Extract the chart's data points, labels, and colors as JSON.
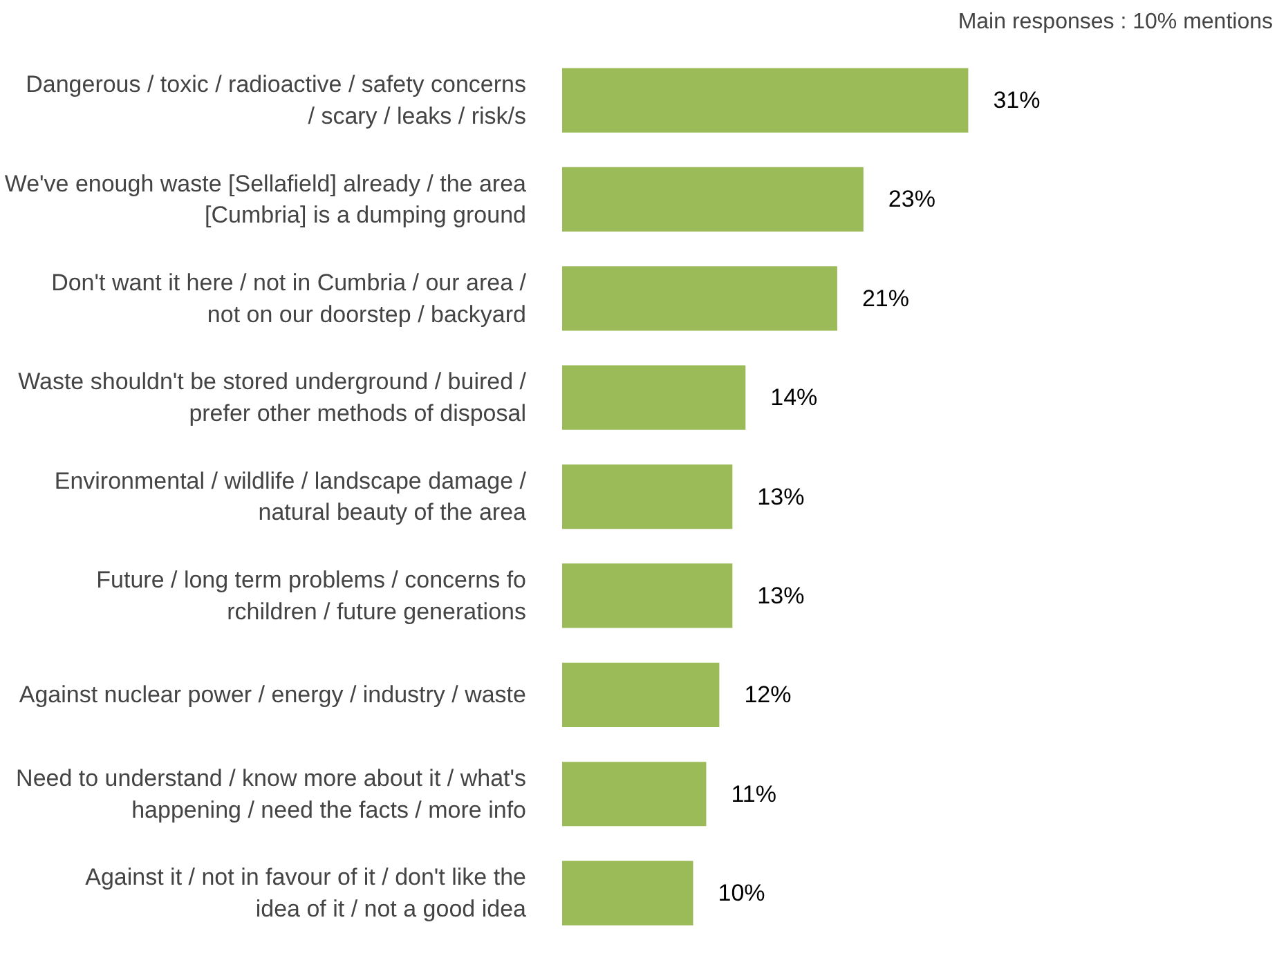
{
  "chart_data": {
    "type": "bar",
    "orientation": "horizontal",
    "title": "Main responses : 10% mentions",
    "categories": [
      "Dangerous / toxic / radioactive / safety concerns / scary / leaks / risk/s",
      "We've enough waste [Sellafield] already / the area [Cumbria] is a dumping ground",
      "Don't want it here / not in Cumbria / our area / not on our doorstep / backyard",
      "Waste shouldn't be stored underground / buired / prefer other methods of disposal",
      "Environmental / wildlife / landscape damage / natural beauty of the area",
      "Future / long term problems / concerns fo rchildren / future generations",
      "Against nuclear power / energy / industry / waste",
      "Need to understand / know more about it / what's happening / need the facts / more info",
      "Against it / not in favour of it / don't like the idea of it / not a good idea"
    ],
    "values": [
      31,
      23,
      21,
      14,
      13,
      13,
      12,
      11,
      10
    ],
    "value_labels": [
      "31%",
      "23%",
      "21%",
      "14%",
      "13%",
      "13%",
      "12%",
      "11%",
      "10%"
    ],
    "color": "#9bbb59"
  }
}
